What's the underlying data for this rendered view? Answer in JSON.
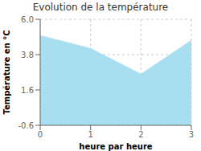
{
  "chart_data": {
    "type": "area",
    "title": "Evolution de la température",
    "xlabel": "heure par heure",
    "ylabel": "Température en °C",
    "x": [
      0,
      1,
      2,
      3
    ],
    "values": [
      5.0,
      4.2,
      2.6,
      4.7
    ],
    "xlim": [
      0,
      3
    ],
    "ylim": [
      -0.6,
      6.0
    ],
    "xticks": [
      0,
      1,
      2,
      3
    ],
    "yticks": [
      -0.6,
      1.6,
      3.8,
      {
        "value": 6.0,
        "label": "6.0"
      }
    ],
    "color": "#a8dff0",
    "line_style": "dotted",
    "grid": true
  }
}
